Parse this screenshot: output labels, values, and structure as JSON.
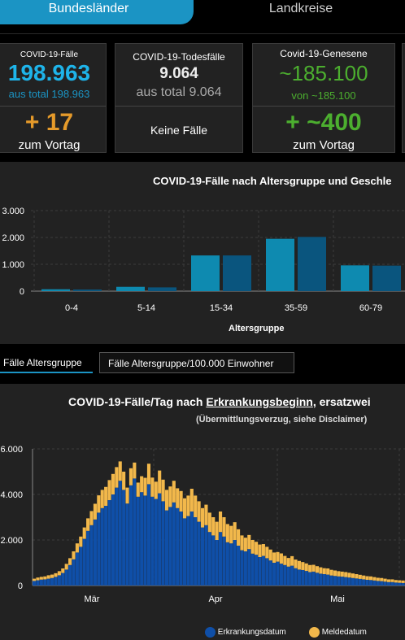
{
  "tabs": {
    "active": "Bundesländer",
    "inactive": "Landkreise"
  },
  "cards": [
    {
      "title": "COVID-19-Fälle",
      "big": "198.963",
      "sub": "aus total 198.963",
      "delta": "+ 17",
      "delta_label": "zum Vortag"
    },
    {
      "title": "COVID-19-Todesfälle",
      "big": "9.064",
      "sub": "aus total 9.064",
      "none": "Keine Fälle"
    },
    {
      "title": "Covid-19-Genesene",
      "big": "~185.100",
      "sub": "von ~185.100",
      "delta": "+ ~400",
      "delta_label": "zum Vortag"
    }
  ],
  "colors": {
    "accent": "#1b94c4",
    "orange": "#e59a2a",
    "green": "#4caf2f",
    "bar_light": "#0e8ab0",
    "bar_dark": "#0a557e",
    "erkrankung": "#0f4fa8",
    "melde": "#f2b84b"
  },
  "age_chart": {
    "title": "COVID-19-Fälle nach Altersgruppe und Geschle",
    "xlabel": "Altersgruppe"
  },
  "buttons": {
    "active": "Fälle Altersgruppe",
    "inactive": "Fälle Altersgruppe/100.000 Einwohner"
  },
  "daily_chart": {
    "title_pre": "COVID-19-Fälle/Tag nach ",
    "title_link": "Erkrankungsbeginn",
    "title_post": ", ersatzwei",
    "subtitle": "(Übermittlungsverzug, siehe Disclaimer)",
    "legend": [
      "Erkrankungsdatum",
      "Meldedatum"
    ]
  },
  "chart_data": [
    {
      "type": "bar",
      "title": "COVID-19-Fälle nach Altersgruppe und Geschle",
      "xlabel": "Altersgruppe",
      "ylabel": "",
      "categories": [
        "0-4",
        "5-14",
        "15-34",
        "35-59",
        "60-79"
      ],
      "series": [
        {
          "values": [
            70,
            160,
            1330,
            1950,
            960
          ]
        },
        {
          "values": [
            60,
            140,
            1330,
            2020,
            950
          ]
        }
      ],
      "yticks": [
        "0",
        "1.000",
        "2.000",
        "3.000"
      ],
      "ylim": [
        0,
        3000
      ],
      "grid": true
    },
    {
      "type": "bar",
      "stacked": true,
      "title": "COVID-19-Fälle/Tag nach Erkrankungsbeginn, ersatzwei",
      "xlabels": [
        "Mär",
        "Apr",
        "Mai"
      ],
      "yticks": [
        "0",
        "2.000",
        "4.000",
        "6.000"
      ],
      "ylim": [
        0,
        6000
      ],
      "legend_position": "bottom",
      "series": [
        {
          "name": "Erkrankungsdatum",
          "values": [
            200,
            230,
            260,
            270,
            300,
            330,
            380,
            450,
            550,
            700,
            900,
            1150,
            1450,
            1700,
            2050,
            2400,
            2650,
            2900,
            3200,
            3400,
            3500,
            3750,
            4000,
            4300,
            4600,
            4200,
            3600,
            4400,
            4700,
            3900,
            4100,
            3950,
            4450,
            3900,
            3800,
            4050,
            3700,
            3300,
            3450,
            3650,
            3400,
            3250,
            2950,
            3050,
            3250,
            3000,
            2800,
            2550,
            2650,
            2350,
            2200,
            2000,
            2350,
            2150,
            1900,
            1850,
            2000,
            1750,
            1550,
            1500,
            1600,
            1400,
            1350,
            1250,
            1300,
            1200,
            1100,
            1000,
            1050,
            960,
            900,
            830,
            870,
            760,
            700,
            680,
            640,
            590,
            610,
            560,
            520,
            500,
            480,
            440,
            420,
            400,
            390,
            370,
            350,
            330,
            310,
            290,
            270,
            250,
            240,
            220,
            200,
            190,
            170,
            150,
            150,
            130,
            120,
            110
          ]
        },
        {
          "name": "Meldedatum",
          "values": [
            100,
            120,
            120,
            130,
            150,
            150,
            160,
            180,
            200,
            250,
            300,
            350,
            400,
            450,
            500,
            550,
            620,
            690,
            760,
            800,
            830,
            880,
            900,
            900,
            850,
            800,
            700,
            750,
            700,
            620,
            700,
            780,
            900,
            840,
            760,
            1000,
            950,
            900,
            900,
            950,
            870,
            900,
            880,
            900,
            1000,
            950,
            900,
            850,
            900,
            850,
            800,
            800,
            900,
            850,
            800,
            770,
            780,
            720,
            650,
            600,
            620,
            600,
            570,
            550,
            520,
            500,
            480,
            450,
            420,
            450,
            400,
            380,
            420,
            380,
            380,
            350,
            330,
            310,
            300,
            290,
            280,
            260,
            270,
            250,
            240,
            230,
            220,
            220,
            210,
            200,
            190,
            180,
            170,
            160,
            160,
            150,
            140,
            140,
            130,
            120,
            120,
            110,
            110,
            110
          ]
        }
      ]
    }
  ]
}
